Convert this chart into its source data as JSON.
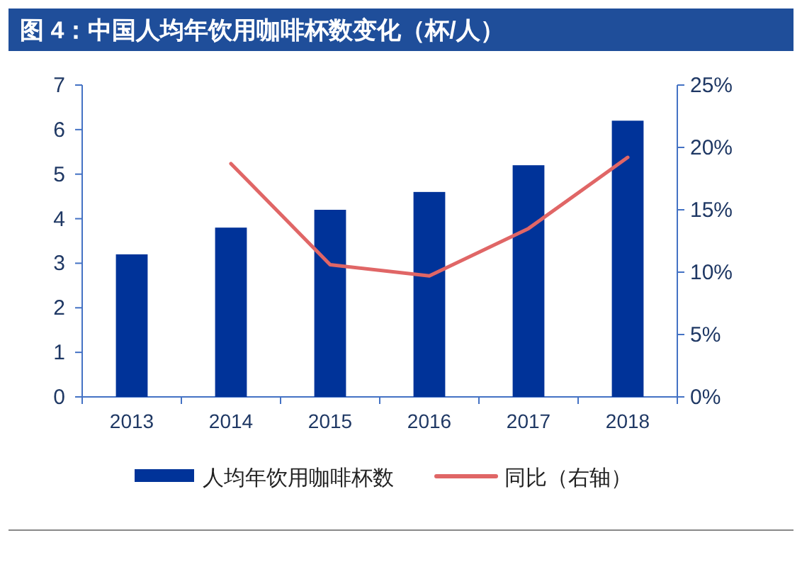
{
  "chart_data": {
    "type": "bar",
    "title": "图 4：中国人均年饮用咖啡杯数变化（杯/人）",
    "categories": [
      "2013",
      "2014",
      "2015",
      "2016",
      "2017",
      "2018"
    ],
    "series": [
      {
        "name": "人均年饮用咖啡杯数",
        "color": "#003399",
        "values": [
          3.2,
          3.8,
          4.2,
          4.6,
          5.2,
          6.2
        ]
      },
      {
        "name": "同比（右轴）",
        "type": "line",
        "axis": "y2",
        "color": "#e06666",
        "values": [
          null,
          18.7,
          10.6,
          9.7,
          13.5,
          19.2
        ]
      }
    ],
    "ylim": [
      0,
      7
    ],
    "yticks": [
      0,
      1,
      2,
      3,
      4,
      5,
      6,
      7
    ],
    "y2lim": [
      0,
      25
    ],
    "y2ticks": [
      {
        "value": 0,
        "label": "0%"
      },
      {
        "value": 5,
        "label": "5%"
      },
      {
        "value": 10,
        "label": "10%"
      },
      {
        "value": 15,
        "label": "15%"
      },
      {
        "value": 20,
        "label": "20%"
      },
      {
        "value": 25,
        "label": "25%"
      }
    ],
    "grid": false,
    "legend": "bottom",
    "marker": "none",
    "line_style": "solid"
  }
}
